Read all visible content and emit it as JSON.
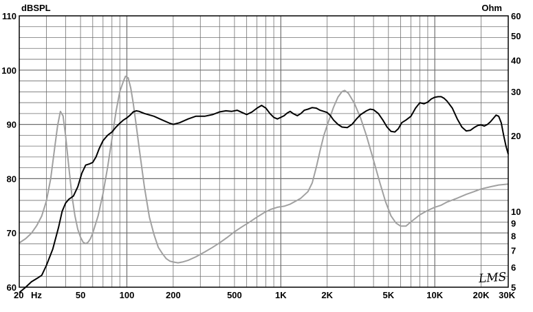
{
  "chart_data": {
    "type": "line",
    "left_axis_unit": "dBSPL",
    "right_axis_unit": "Ohm",
    "x_scale": "log",
    "x_range_hz": [
      20,
      30000
    ],
    "y_left_range_db": [
      60,
      110
    ],
    "y_left_ticks": [
      60,
      70,
      80,
      90,
      100,
      110
    ],
    "y_right_scale": "log",
    "y_right_range_ohm": [
      5,
      60
    ],
    "y_right_ticks": [
      5,
      6,
      7,
      8,
      9,
      10,
      20,
      30,
      40,
      50,
      60
    ],
    "x_tick_labels": [
      {
        "hz": 20,
        "label": "20"
      },
      {
        "hz": 50,
        "label": "50"
      },
      {
        "hz": 100,
        "label": "100"
      },
      {
        "hz": 200,
        "label": "200"
      },
      {
        "hz": 500,
        "label": "500"
      },
      {
        "hz": 1000,
        "label": "1K"
      },
      {
        "hz": 2000,
        "label": "2K"
      },
      {
        "hz": 5000,
        "label": "5K"
      },
      {
        "hz": 10000,
        "label": "10K"
      },
      {
        "hz": 20000,
        "label": "20K"
      },
      {
        "hz": 30000,
        "label": "30K"
      }
    ],
    "x_unit_label": "Hz",
    "grid": true,
    "watermark": "LMS",
    "colors": {
      "spl": "#000000",
      "impedance": "#a0a0a0",
      "grid": "#6e6e6e"
    },
    "series": [
      {
        "axis": "left",
        "color": "#000000",
        "points": [
          [
            20,
            59
          ],
          [
            22,
            60
          ],
          [
            24,
            61
          ],
          [
            26,
            61.6
          ],
          [
            28,
            62.2
          ],
          [
            30,
            64
          ],
          [
            33,
            67
          ],
          [
            36,
            71
          ],
          [
            38,
            74
          ],
          [
            40,
            75.5
          ],
          [
            42,
            76.2
          ],
          [
            45,
            76.8
          ],
          [
            48,
            78.5
          ],
          [
            51,
            81
          ],
          [
            54,
            82.5
          ],
          [
            57,
            82.7
          ],
          [
            60,
            83
          ],
          [
            63,
            84
          ],
          [
            66,
            85.5
          ],
          [
            70,
            87
          ],
          [
            75,
            88
          ],
          [
            80,
            88.6
          ],
          [
            85,
            89.5
          ],
          [
            90,
            90.2
          ],
          [
            95,
            90.8
          ],
          [
            100,
            91.2
          ],
          [
            105,
            91.7
          ],
          [
            110,
            92.3
          ],
          [
            115,
            92.5
          ],
          [
            120,
            92.4
          ],
          [
            130,
            92
          ],
          [
            150,
            91.5
          ],
          [
            170,
            90.8
          ],
          [
            190,
            90.2
          ],
          [
            200,
            90
          ],
          [
            220,
            90.3
          ],
          [
            250,
            91
          ],
          [
            280,
            91.5
          ],
          [
            320,
            91.5
          ],
          [
            360,
            91.8
          ],
          [
            400,
            92.3
          ],
          [
            440,
            92.5
          ],
          [
            480,
            92.4
          ],
          [
            520,
            92.6
          ],
          [
            560,
            92.2
          ],
          [
            600,
            91.8
          ],
          [
            650,
            92.3
          ],
          [
            700,
            93
          ],
          [
            750,
            93.5
          ],
          [
            800,
            93
          ],
          [
            850,
            92
          ],
          [
            900,
            91.3
          ],
          [
            950,
            91
          ],
          [
            1000,
            91.3
          ],
          [
            1050,
            91.6
          ],
          [
            1100,
            92.1
          ],
          [
            1150,
            92.4
          ],
          [
            1200,
            92
          ],
          [
            1280,
            91.6
          ],
          [
            1350,
            92
          ],
          [
            1420,
            92.6
          ],
          [
            1500,
            92.8
          ],
          [
            1600,
            93.1
          ],
          [
            1700,
            93
          ],
          [
            1800,
            92.6
          ],
          [
            1900,
            92.4
          ],
          [
            2000,
            92.2
          ],
          [
            2100,
            91.6
          ],
          [
            2200,
            90.8
          ],
          [
            2350,
            90
          ],
          [
            2500,
            89.5
          ],
          [
            2700,
            89.4
          ],
          [
            2900,
            90
          ],
          [
            3100,
            91
          ],
          [
            3300,
            91.8
          ],
          [
            3600,
            92.5
          ],
          [
            3800,
            92.8
          ],
          [
            4000,
            92.7
          ],
          [
            4300,
            92
          ],
          [
            4600,
            90.8
          ],
          [
            4900,
            89.5
          ],
          [
            5200,
            88.7
          ],
          [
            5500,
            88.6
          ],
          [
            5800,
            89.2
          ],
          [
            6100,
            90.3
          ],
          [
            6500,
            90.8
          ],
          [
            7000,
            91.5
          ],
          [
            7500,
            93
          ],
          [
            8000,
            94
          ],
          [
            8500,
            93.8
          ],
          [
            9000,
            94.1
          ],
          [
            9500,
            94.7
          ],
          [
            10000,
            95
          ],
          [
            10500,
            95.1
          ],
          [
            11000,
            95.1
          ],
          [
            11500,
            94.8
          ],
          [
            12000,
            94.3
          ],
          [
            13000,
            93
          ],
          [
            14000,
            91
          ],
          [
            15000,
            89.5
          ],
          [
            16000,
            88.8
          ],
          [
            17000,
            88.9
          ],
          [
            18000,
            89.4
          ],
          [
            19000,
            89.8
          ],
          [
            20000,
            89.9
          ],
          [
            21000,
            89.7
          ],
          [
            22000,
            90
          ],
          [
            23000,
            90.5
          ],
          [
            24000,
            91.1
          ],
          [
            25000,
            91.7
          ],
          [
            26000,
            91.5
          ],
          [
            27000,
            90.3
          ],
          [
            28000,
            88
          ],
          [
            29000,
            86
          ],
          [
            30000,
            84.5
          ]
        ]
      },
      {
        "axis": "right",
        "color": "#a0a0a0",
        "points": [
          [
            20,
            7.5
          ],
          [
            22,
            7.8
          ],
          [
            24,
            8.2
          ],
          [
            26,
            8.8
          ],
          [
            28,
            9.6
          ],
          [
            30,
            11
          ],
          [
            32,
            13.5
          ],
          [
            34,
            18
          ],
          [
            35.5,
            22
          ],
          [
            37,
            25
          ],
          [
            38.5,
            24
          ],
          [
            40,
            20
          ],
          [
            42,
            15
          ],
          [
            44,
            11.5
          ],
          [
            46,
            9.6
          ],
          [
            48,
            8.5
          ],
          [
            50,
            7.9
          ],
          [
            52,
            7.55
          ],
          [
            54,
            7.45
          ],
          [
            56,
            7.55
          ],
          [
            58,
            7.8
          ],
          [
            60,
            8.2
          ],
          [
            65,
            9.6
          ],
          [
            70,
            11.8
          ],
          [
            75,
            15
          ],
          [
            80,
            19.5
          ],
          [
            85,
            25
          ],
          [
            90,
            30
          ],
          [
            95,
            33
          ],
          [
            98,
            34.5
          ],
          [
            102,
            34
          ],
          [
            106,
            31
          ],
          [
            110,
            27
          ],
          [
            115,
            22
          ],
          [
            120,
            18
          ],
          [
            130,
            12.5
          ],
          [
            140,
            9.5
          ],
          [
            150,
            8.1
          ],
          [
            160,
            7.2
          ],
          [
            170,
            6.8
          ],
          [
            180,
            6.5
          ],
          [
            190,
            6.35
          ],
          [
            200,
            6.3
          ],
          [
            215,
            6.25
          ],
          [
            230,
            6.3
          ],
          [
            250,
            6.4
          ],
          [
            280,
            6.6
          ],
          [
            320,
            6.9
          ],
          [
            360,
            7.2
          ],
          [
            400,
            7.5
          ],
          [
            450,
            7.9
          ],
          [
            500,
            8.3
          ],
          [
            560,
            8.7
          ],
          [
            630,
            9.1
          ],
          [
            700,
            9.5
          ],
          [
            780,
            9.9
          ],
          [
            860,
            10.2
          ],
          [
            950,
            10.4
          ],
          [
            1050,
            10.5
          ],
          [
            1150,
            10.7
          ],
          [
            1250,
            11
          ],
          [
            1350,
            11.3
          ],
          [
            1500,
            12
          ],
          [
            1600,
            13
          ],
          [
            1700,
            15
          ],
          [
            1800,
            17.5
          ],
          [
            1900,
            20
          ],
          [
            2000,
            22
          ],
          [
            2100,
            24
          ],
          [
            2200,
            26
          ],
          [
            2350,
            28.5
          ],
          [
            2500,
            30
          ],
          [
            2600,
            30.3
          ],
          [
            2750,
            29.5
          ],
          [
            3000,
            27
          ],
          [
            3300,
            23.5
          ],
          [
            3600,
            20
          ],
          [
            4000,
            16
          ],
          [
            4400,
            13
          ],
          [
            4800,
            10.9
          ],
          [
            5200,
            9.6
          ],
          [
            5600,
            9
          ],
          [
            6000,
            8.75
          ],
          [
            6500,
            8.75
          ],
          [
            7000,
            9.1
          ],
          [
            8000,
            9.7
          ],
          [
            9000,
            10.1
          ],
          [
            10000,
            10.4
          ],
          [
            11000,
            10.6
          ],
          [
            12000,
            10.9
          ],
          [
            14000,
            11.3
          ],
          [
            16000,
            11.7
          ],
          [
            18000,
            12
          ],
          [
            20000,
            12.3
          ],
          [
            23000,
            12.55
          ],
          [
            26000,
            12.75
          ],
          [
            30000,
            12.85
          ]
        ]
      }
    ]
  }
}
